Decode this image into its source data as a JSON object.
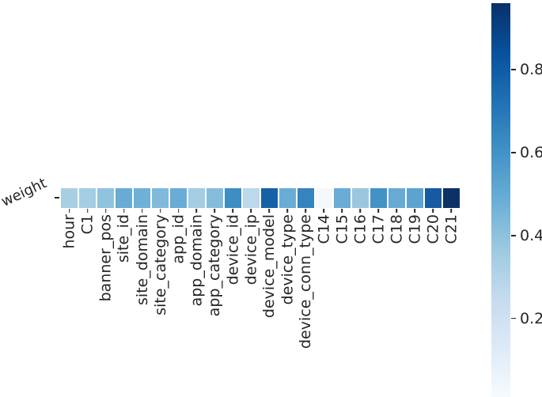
{
  "chart_data": {
    "type": "heatmap",
    "title": "",
    "row_label": "weight",
    "categories": [
      "hour",
      "C1",
      "banner_pos",
      "site_id",
      "site_domain",
      "site_category",
      "app_id",
      "app_domain",
      "app_category",
      "device_id",
      "device_ip",
      "device_model",
      "device_type",
      "device_conn_type",
      "C14",
      "C15",
      "C16",
      "C17",
      "C18",
      "C19",
      "C20",
      "C21"
    ],
    "values": [
      0.36,
      0.37,
      0.42,
      0.5,
      0.49,
      0.46,
      0.5,
      0.36,
      0.44,
      0.62,
      0.29,
      0.77,
      0.5,
      0.64,
      0.04,
      0.5,
      0.39,
      0.61,
      0.51,
      0.54,
      0.82,
      0.96
    ],
    "cell_colors": [
      "#a8cee4",
      "#a4cce3",
      "#90c3df",
      "#68abd4",
      "#6fb0d8",
      "#7fbada",
      "#69acd5",
      "#a4cce3",
      "#85bcdc",
      "#3d8ec4",
      "#bdd7eb",
      "#1561a9",
      "#69acd6",
      "#3684bf",
      "#f5f9fe",
      "#69acd5",
      "#9bc6e0",
      "#4392c6",
      "#67aad4",
      "#5ca4d0",
      "#1859a4",
      "#0b3167"
    ],
    "colormap": "Blues",
    "grid": false,
    "legend_position": "right-colorbar",
    "text_color": "#262626",
    "colorbar": {
      "tick_labels": [
        "0.8",
        "0.6",
        "0.4",
        "0.2"
      ],
      "tick_values": [
        0.8,
        0.6,
        0.4,
        0.2
      ],
      "vmax": 0.96,
      "vmin": 0.005,
      "gradient_top_to_bottom": [
        "#08306b",
        "#08519c",
        "#2171b5",
        "#4292c6",
        "#6baed6",
        "#9ecae1",
        "#c6dbef",
        "#deebf7",
        "#f7fbff"
      ]
    }
  }
}
